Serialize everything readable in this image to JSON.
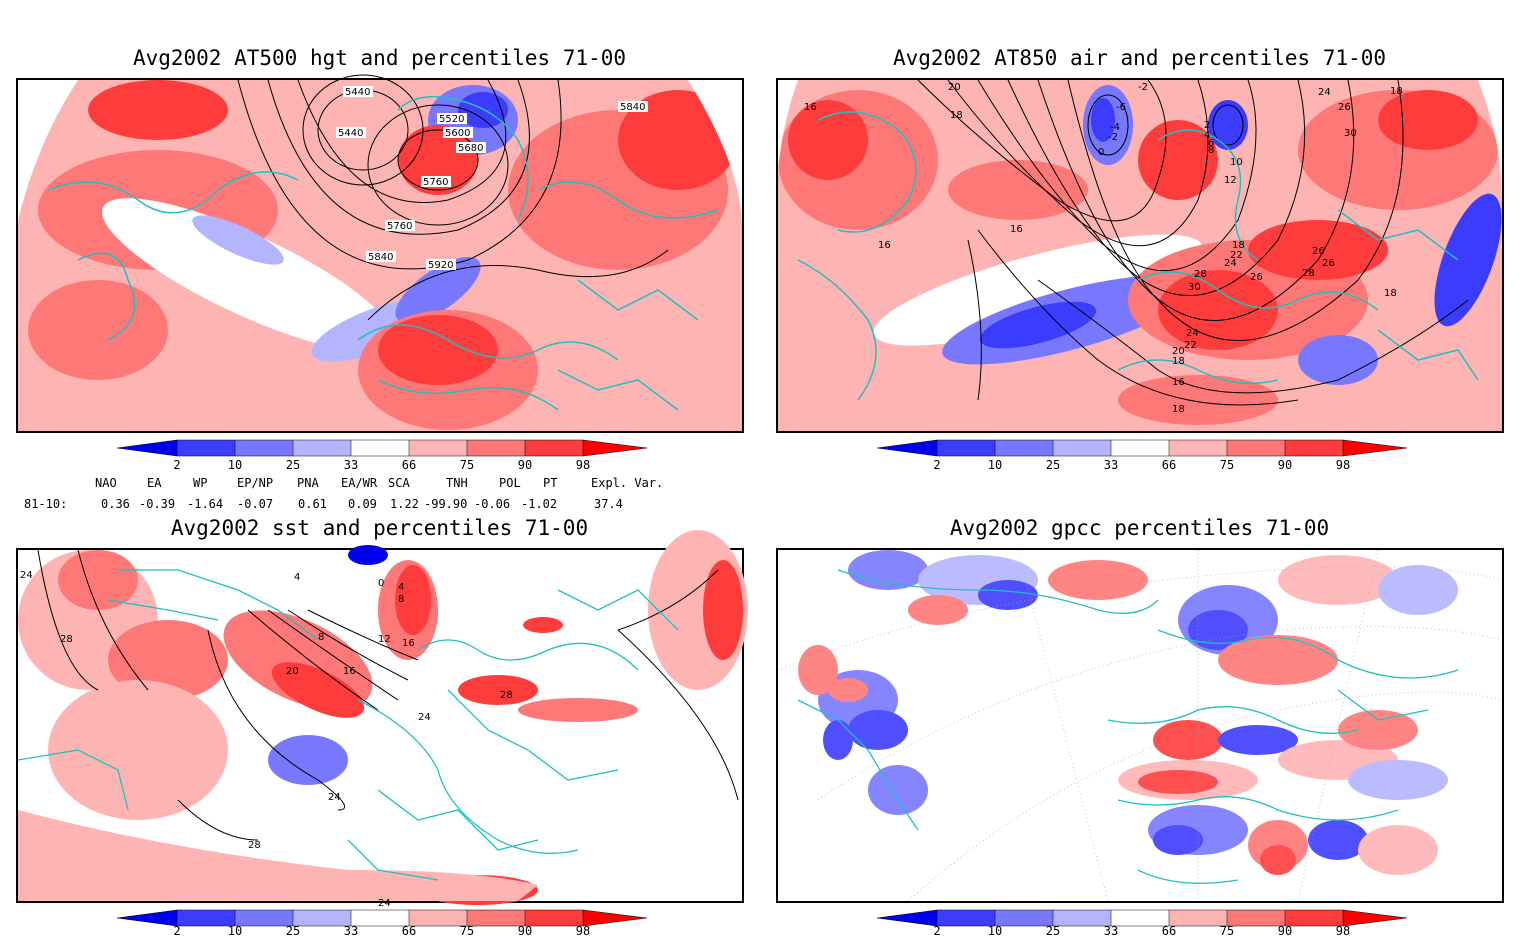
{
  "panels": [
    {
      "title": "Avg2002 AT500 hgt and percentiles 71-00",
      "contour_labels": [
        "5440",
        "5440",
        "5520",
        "5600",
        "5680",
        "5760",
        "5760",
        "5840",
        "5920",
        "5840"
      ]
    },
    {
      "title": "Avg2002 AT850 air and percentiles 71-00",
      "contour_labels": [
        "20",
        "18",
        "16",
        "-6",
        "-4",
        "-2",
        "0",
        "-2",
        "2",
        "4",
        "6",
        "8",
        "10",
        "12",
        "24",
        "26",
        "30",
        "18",
        "16",
        "16",
        "18",
        "22",
        "24",
        "26",
        "28",
        "30",
        "28",
        "26",
        "24",
        "22",
        "20",
        "18",
        "16",
        "18",
        "26",
        "18"
      ]
    },
    {
      "title": "Avg2002 sst and percentiles 71-00",
      "contour_labels": [
        "24",
        "28",
        "0",
        "4",
        "8",
        "4",
        "8",
        "12",
        "16",
        "20",
        "16",
        "24",
        "28",
        "24",
        "28",
        "24"
      ]
    },
    {
      "title": "Avg2002 gpcc percentiles 71-00",
      "contour_labels": []
    }
  ],
  "colorbar": {
    "ticks": [
      "2",
      "10",
      "25",
      "33",
      "66",
      "75",
      "90",
      "98"
    ],
    "colors": [
      "#0000f0",
      "#3c3cff",
      "#7878ff",
      "#b4b4ff",
      "#ffffff",
      "#ffb4b4",
      "#ff7878",
      "#ff3c3c",
      "#ff0000"
    ]
  },
  "indices": {
    "header": [
      "NAO",
      "EA",
      "WP",
      "EP/NP",
      "PNA",
      "EA/WR",
      "SCA",
      "TNH",
      "POL",
      "PT",
      "Expl. Var."
    ],
    "row_label": "81-10:",
    "values": [
      "0.36",
      "-0.39",
      "-1.64",
      "-0.07",
      "0.61",
      "0.09",
      "1.22",
      "-99.90",
      "-0.06",
      "-1.02",
      "37.4"
    ]
  },
  "colors": {
    "coast": "#20c0c0",
    "frame": "#000000"
  }
}
